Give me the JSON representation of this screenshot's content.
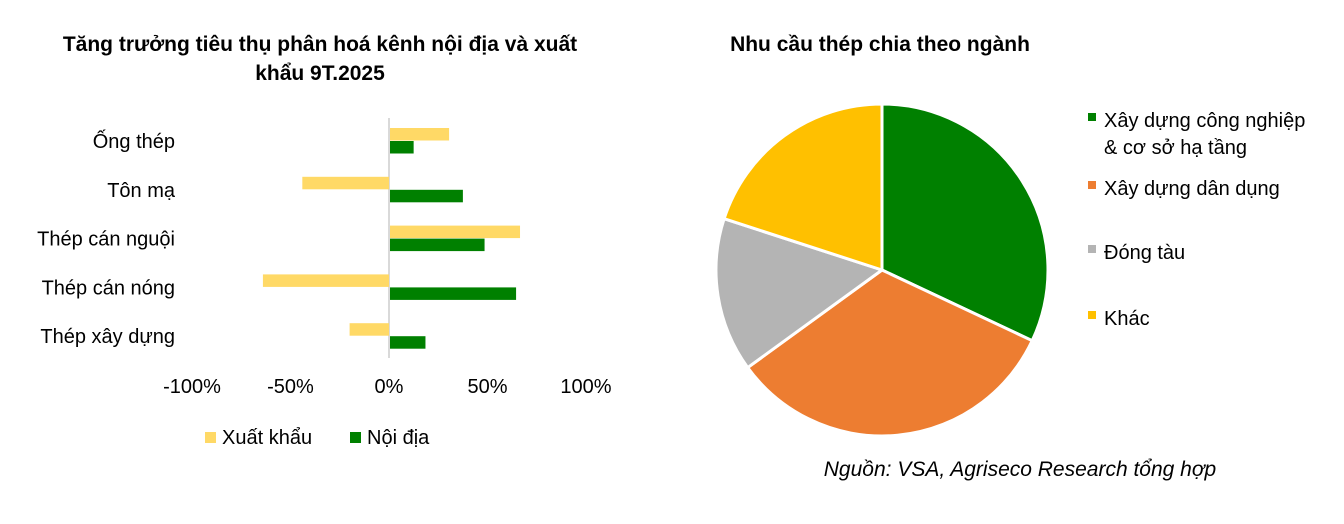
{
  "chart_data": [
    {
      "type": "bar",
      "orientation": "horizontal",
      "title": "Tăng trưởng tiêu thụ phân hoá kênh nội địa và xuất khẩu 9T.2025",
      "categories": [
        "Ống thép",
        "Tôn mạ",
        "Thép cán nguội",
        "Thép cán nóng",
        "Thép xây dựng"
      ],
      "series": [
        {
          "name": "Xuất khẩu",
          "color": "#FFD966",
          "values": [
            30,
            -44,
            66,
            -64,
            -20
          ]
        },
        {
          "name": "Nội địa",
          "color": "#008000",
          "values": [
            12,
            37,
            48,
            64,
            18
          ]
        }
      ],
      "xlim": [
        -100,
        100
      ],
      "xticks": [
        "-100%",
        "-50%",
        "0%",
        "50%",
        "100%"
      ],
      "xtick_values": [
        -100,
        -50,
        0,
        50,
        100
      ],
      "grid": false,
      "legend_position": "bottom"
    },
    {
      "type": "pie",
      "title": "Nhu cầu thép chia theo ngành",
      "labels": [
        "Xây dựng công nghiệp & cơ sở hạ tầng",
        "Xây dựng dân dụng",
        "Đóng tàu",
        "Khác"
      ],
      "label_lines": [
        [
          "Xây dựng công nghiệp",
          "& cơ sở hạ tầng"
        ],
        [
          "Xây dựng dân dụng"
        ],
        [
          "Đóng tàu"
        ],
        [
          "Khác"
        ]
      ],
      "values": [
        32,
        33,
        15,
        20
      ],
      "colors": [
        "#008000",
        "#ED7D31",
        "#B4B4B4",
        "#FFC000"
      ],
      "legend_position": "right"
    }
  ],
  "source": "Nguồn: VSA, Agriseco Research tổng hợp"
}
